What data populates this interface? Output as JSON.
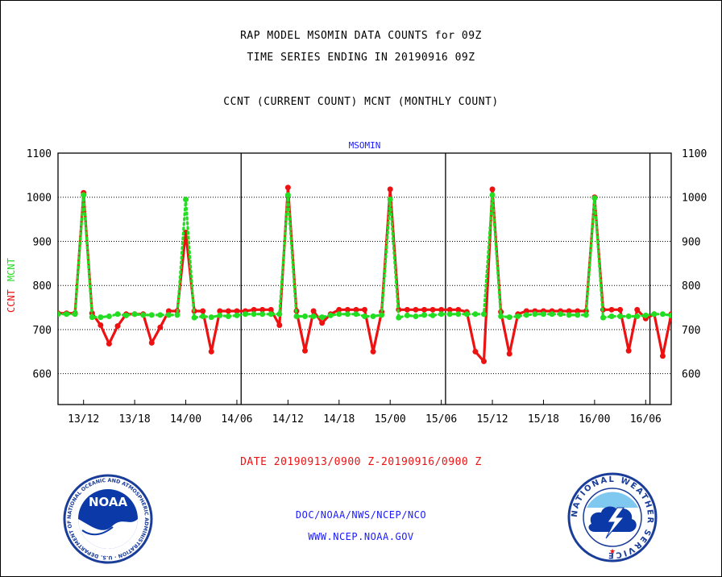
{
  "header": {
    "title1": "RAP MODEL MSOMIN DATA COUNTS for 09Z",
    "title2": "TIME SERIES ENDING IN 20190916 09Z",
    "subtitle": "CCNT (CURRENT COUNT) MCNT (MONTHLY COUNT)"
  },
  "footer": {
    "date_range": "DATE 20190913/0900 Z-20190916/0900 Z",
    "org": "DOC/NOAA/NWS/NCEP/NCO",
    "url": "WWW.NCEP.NOAA.GOV"
  },
  "logos": {
    "noaa_text": "NOAA",
    "noaa_ring": "NATIONAL OCEANIC AND ATMOSPHERIC ADMINISTRATION · U.S. DEPARTMENT OF COMMERCE",
    "nws_ring": "NATIONAL WEATHER SERVICE"
  },
  "colors": {
    "ccnt": "#ee1111",
    "mcnt": "#22dd22",
    "label_blue": "#1a1aff"
  },
  "chart_data": {
    "type": "line",
    "title": "MSOMIN",
    "ylabel_series": [
      "CCNT",
      "MCNT"
    ],
    "ylim": [
      530,
      1100
    ],
    "yticks": [
      600,
      700,
      800,
      900,
      1000,
      1100
    ],
    "xlim": [
      0,
      72
    ],
    "xticks": [
      {
        "h": 3,
        "label": "13/12"
      },
      {
        "h": 9,
        "label": "13/18"
      },
      {
        "h": 15,
        "label": "14/00"
      },
      {
        "h": 21,
        "label": "14/06"
      },
      {
        "h": 27,
        "label": "14/12"
      },
      {
        "h": 33,
        "label": "14/18"
      },
      {
        "h": 39,
        "label": "15/00"
      },
      {
        "h": 45,
        "label": "15/06"
      },
      {
        "h": 51,
        "label": "15/12"
      },
      {
        "h": 57,
        "label": "15/18"
      },
      {
        "h": 63,
        "label": "16/00"
      },
      {
        "h": 69,
        "label": "16/06"
      }
    ],
    "day_boundaries": [
      21.5,
      45.5,
      69.5
    ],
    "grid": true,
    "series": [
      {
        "name": "CCNT",
        "x": [
          0,
          1,
          2,
          3,
          4,
          5,
          6,
          7,
          8,
          9,
          10,
          11,
          12,
          13,
          14,
          15,
          16,
          17,
          18,
          19,
          20,
          21,
          22,
          23,
          24,
          25,
          26,
          27,
          28,
          29,
          30,
          31,
          32,
          33,
          34,
          35,
          36,
          37,
          38,
          39,
          40,
          41,
          42,
          43,
          44,
          45,
          46,
          47,
          48,
          49,
          50,
          51,
          52,
          53,
          54,
          55,
          56,
          57,
          58,
          59,
          60,
          61,
          62,
          63,
          64,
          65,
          66,
          67,
          68,
          69,
          70,
          71,
          72
        ],
        "values": [
          737,
          737,
          737,
          1010,
          737,
          710,
          668,
          708,
          735,
          735,
          735,
          670,
          705,
          742,
          742,
          920,
          742,
          742,
          650,
          742,
          742,
          742,
          742,
          745,
          745,
          745,
          710,
          1022,
          742,
          652,
          742,
          715,
          735,
          745,
          745,
          745,
          745,
          650,
          740,
          1018,
          745,
          745,
          745,
          745,
          745,
          745,
          745,
          745,
          740,
          650,
          628,
          1018,
          740,
          645,
          735,
          742,
          742,
          742,
          742,
          742,
          742,
          742,
          742,
          1000,
          745,
          745,
          745,
          652,
          745,
          725,
          735,
          640,
          735
        ]
      },
      {
        "name": "MCNT",
        "x": [
          0,
          1,
          2,
          3,
          4,
          5,
          6,
          7,
          8,
          9,
          10,
          11,
          12,
          13,
          14,
          15,
          16,
          17,
          18,
          19,
          20,
          21,
          22,
          23,
          24,
          25,
          26,
          27,
          28,
          29,
          30,
          31,
          32,
          33,
          34,
          35,
          36,
          37,
          38,
          39,
          40,
          41,
          42,
          43,
          44,
          45,
          46,
          47,
          48,
          49,
          50,
          51,
          52,
          53,
          54,
          55,
          56,
          57,
          58,
          59,
          60,
          61,
          62,
          63,
          64,
          65,
          66,
          67,
          68,
          69,
          70,
          71,
          72
        ],
        "values": [
          735,
          735,
          735,
          1005,
          728,
          728,
          730,
          735,
          732,
          735,
          733,
          733,
          733,
          733,
          733,
          995,
          727,
          730,
          728,
          732,
          730,
          732,
          735,
          735,
          735,
          735,
          735,
          1005,
          730,
          730,
          730,
          728,
          732,
          735,
          735,
          735,
          730,
          730,
          733,
          995,
          727,
          732,
          730,
          733,
          732,
          735,
          735,
          735,
          735,
          735,
          735,
          1005,
          730,
          728,
          730,
          733,
          735,
          735,
          735,
          735,
          733,
          733,
          733,
          998,
          727,
          730,
          730,
          730,
          730,
          732,
          735,
          735,
          732
        ]
      }
    ]
  }
}
